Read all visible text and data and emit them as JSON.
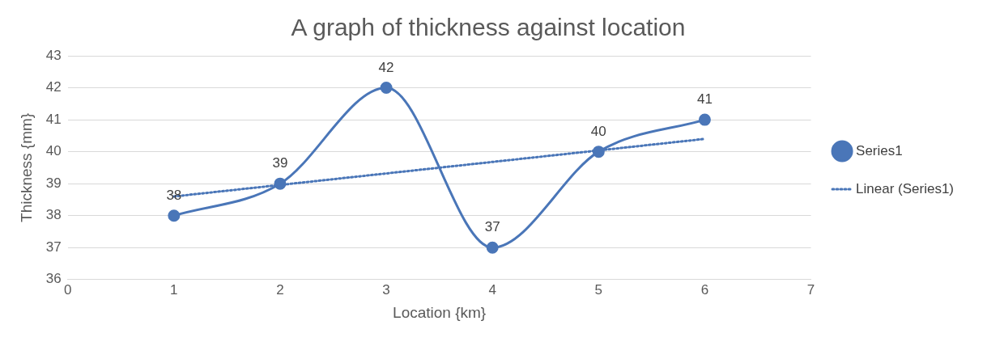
{
  "chart_data": {
    "type": "line",
    "title": "A graph of thickness against location",
    "xlabel": "Location {km}",
    "ylabel": "Thickness {mm}",
    "x": [
      1,
      2,
      3,
      4,
      5,
      6
    ],
    "series": [
      {
        "name": "Series1",
        "color": "#4a76b8",
        "values": [
          38,
          39,
          42,
          37,
          40,
          41
        ],
        "marker": "circle",
        "line_style": "solid",
        "data_labels": true
      },
      {
        "name": "Linear (Series1)",
        "type": "line",
        "color": "#4a76b8",
        "x": [
          1,
          6
        ],
        "values": [
          38.6,
          40.4
        ],
        "marker": "none",
        "line_style": "dotted"
      }
    ],
    "xlim": [
      0,
      7
    ],
    "xticks": [
      0,
      1,
      2,
      3,
      4,
      5,
      6,
      7
    ],
    "ylim": [
      36,
      43
    ],
    "yticks": [
      36,
      37,
      38,
      39,
      40,
      41,
      42,
      43
    ],
    "grid": "y",
    "legend": "right"
  }
}
